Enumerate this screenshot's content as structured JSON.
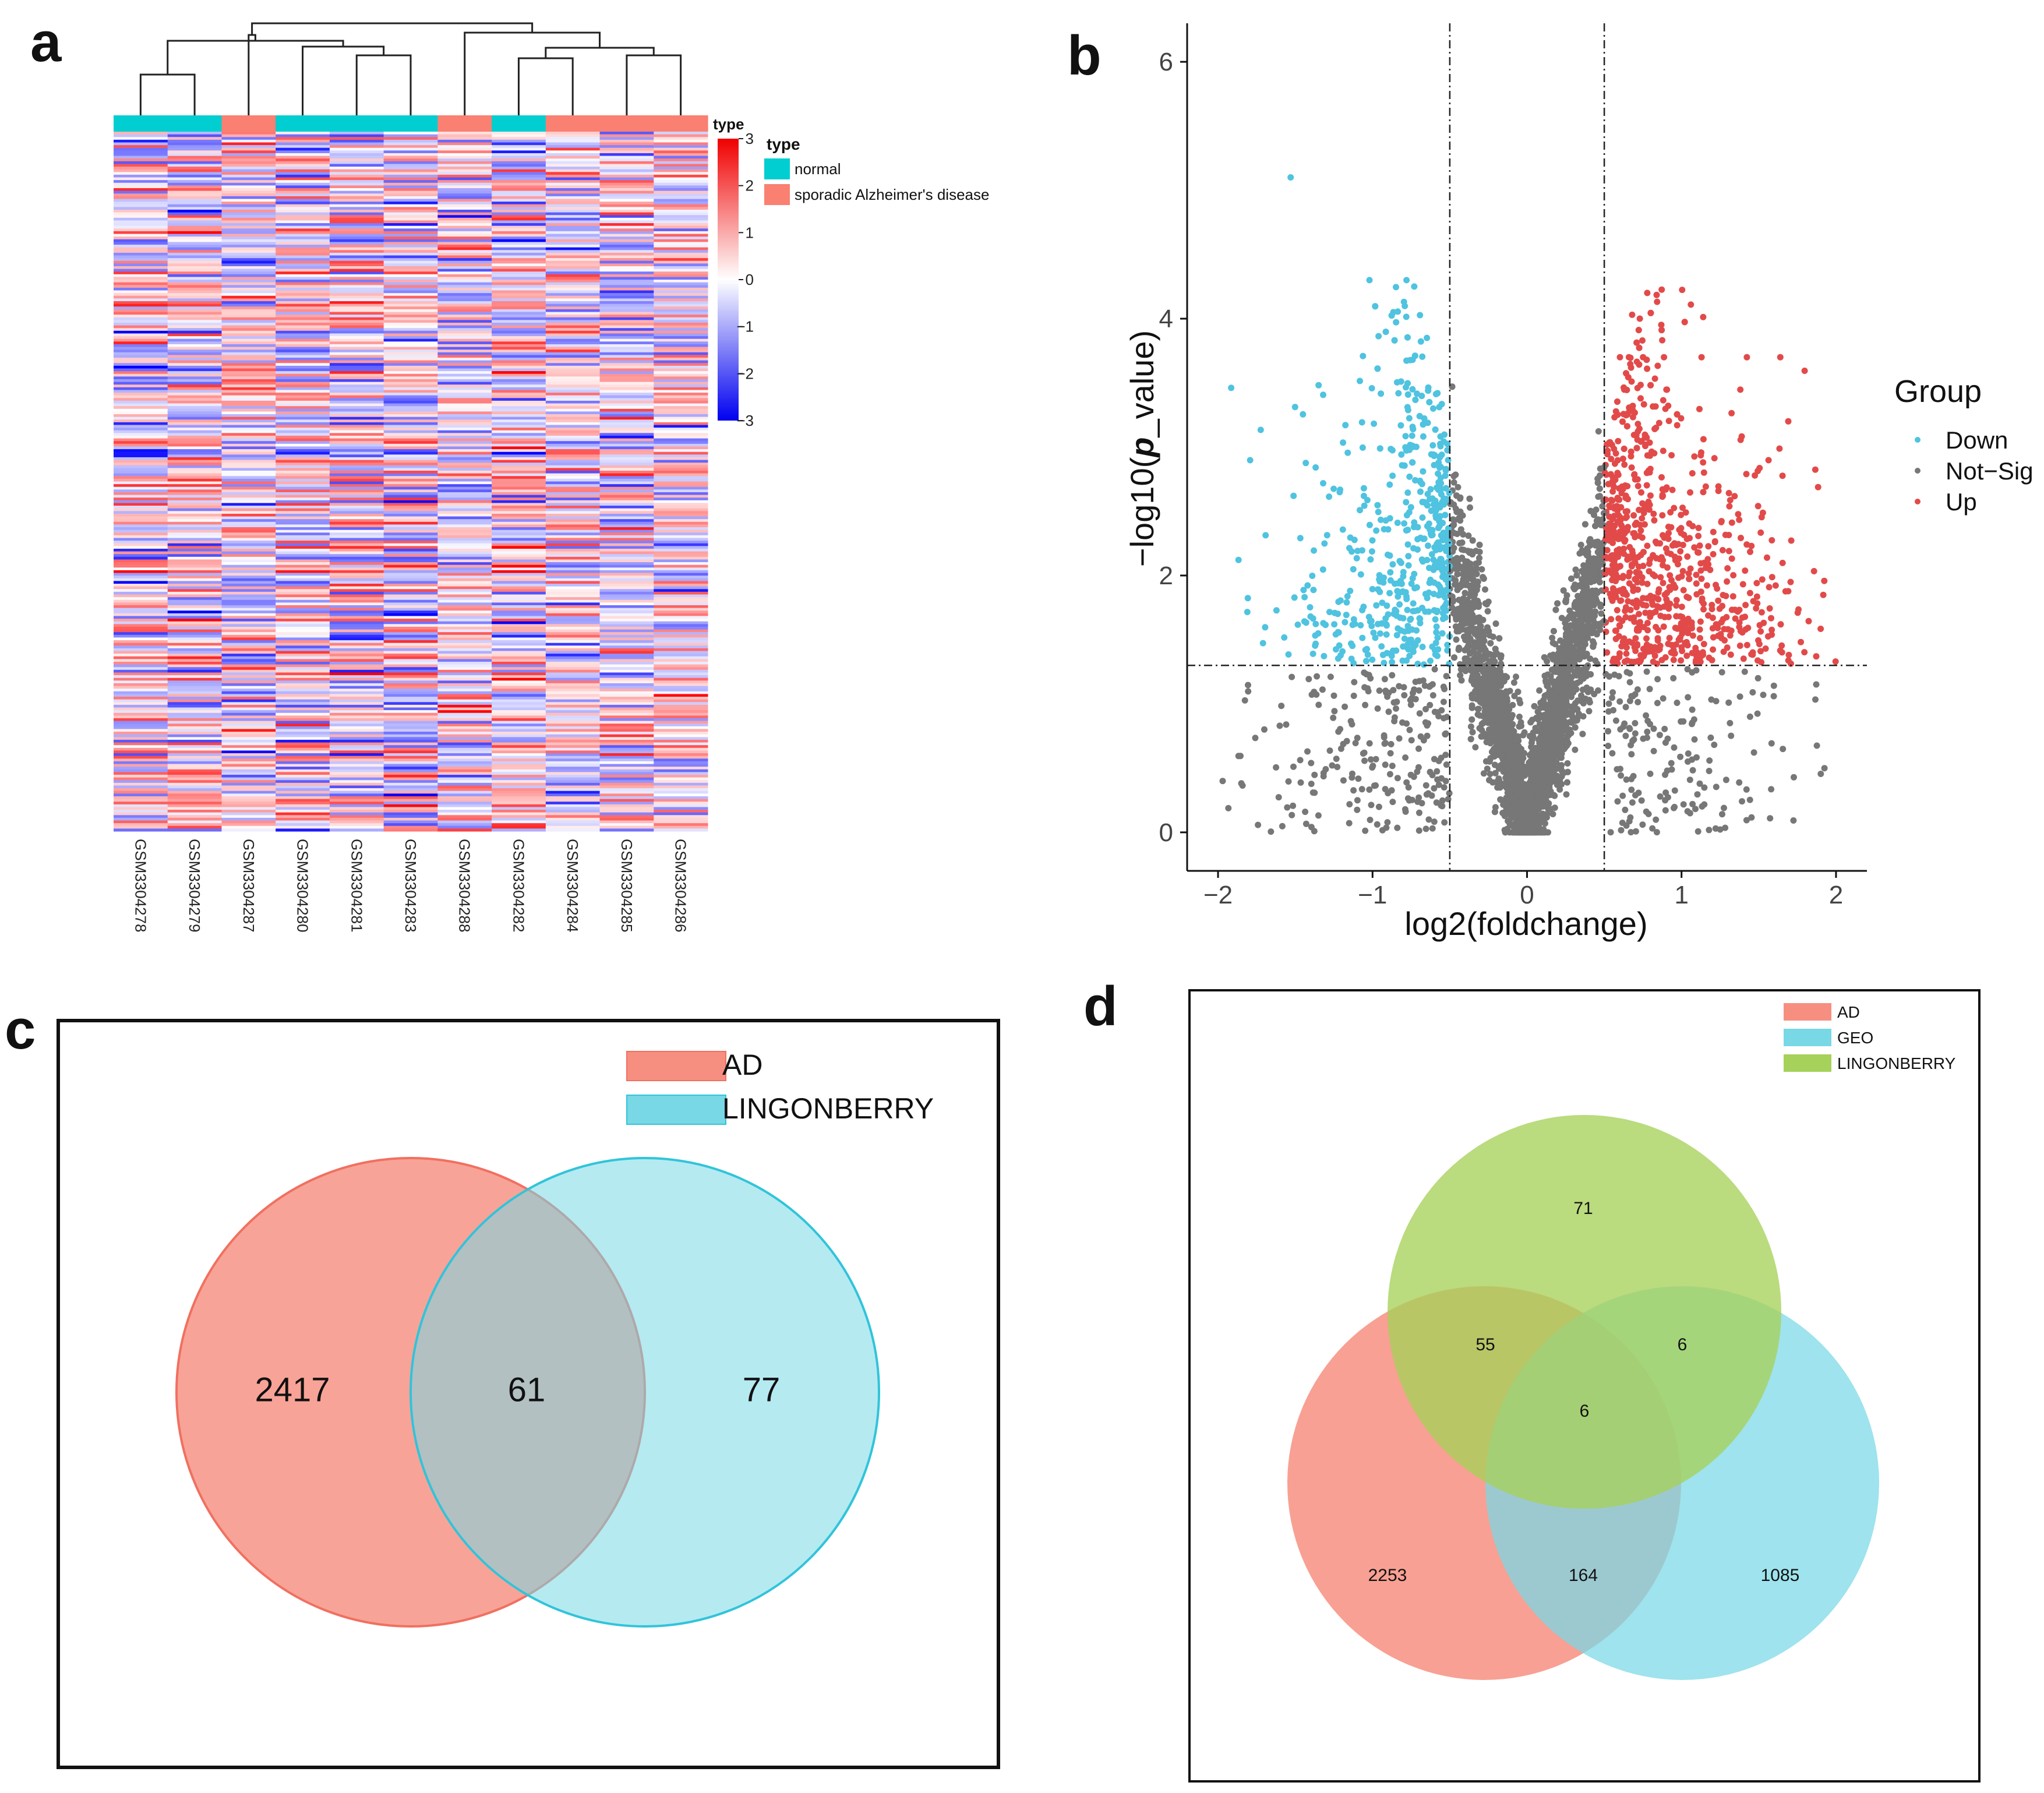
{
  "panels": {
    "a": "a",
    "b": "b",
    "c": "c",
    "d": "d"
  },
  "colors": {
    "normal": "#00CED1",
    "ad": "#FA8072",
    "down": "#4FC3E0",
    "notsig": "#777777",
    "up": "#E24A4A",
    "venn_red": "#F78F80",
    "venn_cyan": "#78D8E6",
    "venn_green": "#A6D15A"
  },
  "chart_data": [
    {
      "type": "heatmap",
      "panel": "a",
      "samples": [
        "GSM3304278",
        "GSM3304279",
        "GSM3304287",
        "GSM3304280",
        "GSM3304281",
        "GSM3304283",
        "GSM3304288",
        "GSM3304282",
        "GSM3304284",
        "GSM3304285",
        "GSM3304286"
      ],
      "sample_types": [
        "normal",
        "normal",
        "sporadic Alzheimer's disease",
        "normal",
        "normal",
        "normal",
        "sporadic Alzheimer's disease",
        "normal",
        "sporadic Alzheimer's disease",
        "sporadic Alzheimer's disease",
        "sporadic Alzheimer's disease"
      ],
      "annotation_label": "type",
      "legend": {
        "title": "type",
        "items": [
          "normal",
          "sporadic Alzheimer's disease"
        ]
      },
      "colorbar": {
        "title": "type",
        "ticks": [
          "3",
          "2",
          "1",
          "0",
          "−1",
          "−2",
          "−3"
        ],
        "range": [
          -3,
          3
        ]
      },
      "rows": 260
    },
    {
      "type": "scatter",
      "panel": "b",
      "xlabel": "log2(foldchange)",
      "ylabel_prefix": "−log10(",
      "ylabel_italic": "p",
      "ylabel_suffix": "_value)",
      "xlim": [
        -2.2,
        2.2
      ],
      "ylim": [
        -0.3,
        6.3
      ],
      "xticks": [
        -2,
        -1,
        0,
        1,
        2
      ],
      "xtick_labels": [
        "−2",
        "−1",
        "0",
        "1",
        "2"
      ],
      "yticks": [
        0,
        2,
        4,
        6
      ],
      "ytick_labels": [
        "0",
        "2",
        "4",
        "6"
      ],
      "vlines": [
        -0.5,
        0.5
      ],
      "hline": 1.3,
      "legend": {
        "title": "Group",
        "items": [
          "Down",
          "Not−Sig",
          "Up"
        ]
      },
      "groups": [
        "Down",
        "Not-Sig",
        "Up"
      ],
      "highlight_points": [
        {
          "x": -1.53,
          "y": 5.1,
          "group": "Down"
        },
        {
          "x": -1.02,
          "y": 4.3,
          "group": "Down"
        },
        {
          "x": -0.78,
          "y": 4.3,
          "group": "Down"
        },
        {
          "x": -0.73,
          "y": 4.25,
          "group": "Down"
        },
        {
          "x": 0.68,
          "y": 4.03,
          "group": "Up"
        },
        {
          "x": 0.73,
          "y": 4.0,
          "group": "Up"
        },
        {
          "x": -1.97,
          "y": 0.4,
          "group": "Not-Sig"
        }
      ]
    },
    {
      "type": "venn",
      "panel": "c",
      "sets": [
        "AD",
        "LINGONBERRY"
      ],
      "regions": {
        "AD_only": "2417",
        "intersection": "61",
        "LINGONBERRY_only": "77"
      }
    },
    {
      "type": "venn",
      "panel": "d",
      "sets": [
        "AD",
        "GEO",
        "LINGONBERRY"
      ],
      "regions": {
        "LINGONBERRY_only": "71",
        "AD_LINGONBERRY": "55",
        "GEO_LINGONBERRY": "6",
        "all": "6",
        "AD_only": "2253",
        "AD_GEO": "164",
        "GEO_only": "1085"
      }
    }
  ]
}
